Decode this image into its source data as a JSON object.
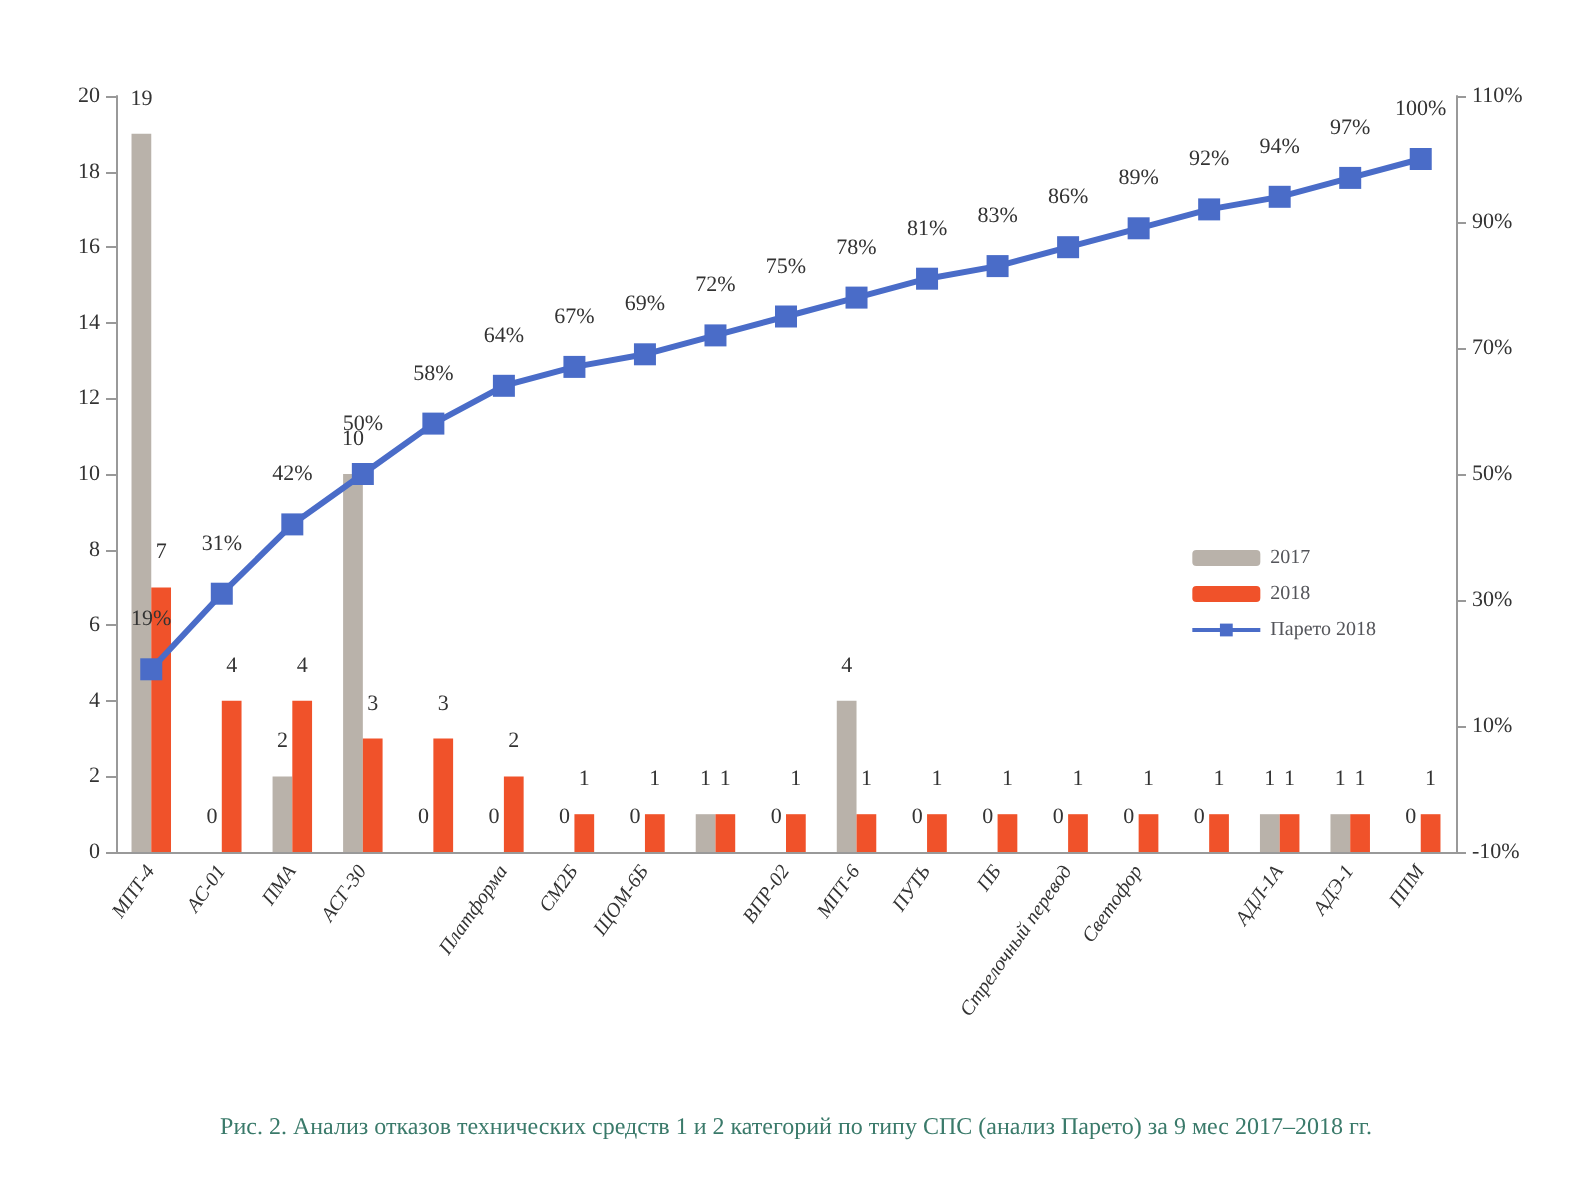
{
  "chart_data": {
    "type": "bar",
    "categories": [
      "МПТ-4",
      "АС-01",
      "ПМА",
      "АСГ-30",
      null,
      "Платформа",
      "СМ2Б",
      "ЩОМ-6Б",
      null,
      "ВПР-02",
      "МПТ-6",
      "ПУТЬ",
      "ПБ",
      "Стрелочный перевод",
      "Светофор",
      null,
      "АДЛ-1А",
      "АДЭ-1",
      "ППМ"
    ],
    "series": [
      {
        "name": "2017",
        "color": "#b9b2aa",
        "values": [
          19,
          0,
          2,
          10,
          0,
          0,
          0,
          0,
          1,
          0,
          4,
          0,
          0,
          0,
          0,
          0,
          1,
          1,
          0
        ]
      },
      {
        "name": "2018",
        "color": "#f0522a",
        "values": [
          7,
          4,
          4,
          3,
          3,
          2,
          1,
          1,
          1,
          1,
          1,
          1,
          1,
          1,
          1,
          1,
          1,
          1,
          1
        ]
      },
      {
        "name": "Парето 2018",
        "type": "line",
        "axis": "y2",
        "color": "#4a6cc8",
        "values": [
          19,
          31,
          42,
          50,
          58,
          64,
          67,
          69,
          72,
          75,
          78,
          81,
          83,
          86,
          89,
          92,
          94,
          97,
          100
        ],
        "value_labels": [
          "19%",
          "31%",
          "42%",
          "50%",
          "58%",
          "64%",
          "67%",
          "69%",
          "72%",
          "75%",
          "78%",
          "81%",
          "83%",
          "86%",
          "89%",
          "92%",
          "94%",
          "97%",
          "100%"
        ]
      }
    ],
    "ylim": [
      0,
      20
    ],
    "yticks": [
      0,
      2,
      4,
      6,
      8,
      10,
      12,
      14,
      16,
      18,
      20
    ],
    "y2lim": [
      -10,
      110
    ],
    "y2ticks": [
      {
        "value": -10,
        "label": "-10%"
      },
      {
        "value": 10,
        "label": "10%"
      },
      {
        "value": 30,
        "label": "30%"
      },
      {
        "value": 50,
        "label": "50%"
      },
      {
        "value": 70,
        "label": "70%"
      },
      {
        "value": 90,
        "label": "90%"
      },
      {
        "value": 110,
        "label": "110%"
      }
    ],
    "data_labels": true,
    "marker": "square",
    "legend": "right",
    "grid": false,
    "annotations": [
      "Рис. 2. Анализ отказов технических средств 1 и 2 категорий по типу СПС (анализ Парето) за 9 мес 2017–2018 гг."
    ]
  }
}
